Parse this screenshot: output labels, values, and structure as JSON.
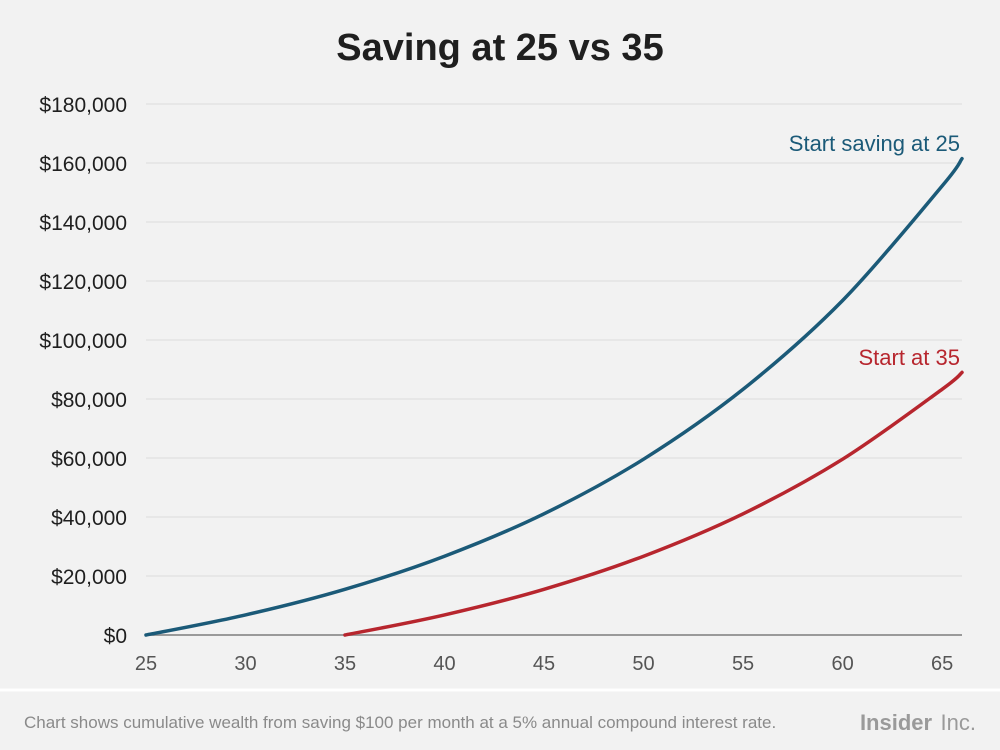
{
  "chart_data": {
    "type": "line",
    "title": "Saving at 25 vs 35",
    "xlabel": "",
    "ylabel": "",
    "xlim": [
      25,
      66
    ],
    "ylim": [
      0,
      180000
    ],
    "x_ticks": [
      25,
      30,
      35,
      40,
      45,
      50,
      55,
      60,
      65
    ],
    "x_tick_labels": [
      "25",
      "30",
      "35",
      "40",
      "45",
      "50",
      "55",
      "60",
      "65"
    ],
    "y_ticks": [
      0,
      20000,
      40000,
      60000,
      80000,
      100000,
      120000,
      140000,
      160000,
      180000
    ],
    "y_tick_labels": [
      "$0",
      "$20,000",
      "$40,000",
      "$60,000",
      "$80,000",
      "$100,000",
      "$120,000",
      "$140,000",
      "$160,000",
      "$180,000"
    ],
    "grid": true,
    "legend": "none",
    "series": [
      {
        "name": "Start saving at 25",
        "color": "#1b5a78",
        "x": [
          25,
          30,
          35,
          40,
          45,
          50,
          55,
          60,
          65,
          66
        ],
        "y": [
          0,
          6800,
          15500,
          26700,
          41100,
          59600,
          83300,
          113400,
          152200,
          161500
        ]
      },
      {
        "name": "Start at 35",
        "color": "#b7262e",
        "x": [
          35,
          40,
          45,
          50,
          55,
          60,
          65,
          66
        ],
        "y": [
          0,
          6800,
          15500,
          26700,
          41100,
          59600,
          83300,
          89000
        ]
      }
    ]
  },
  "footnote": "Chart shows cumulative wealth from saving $100 per month at a 5% annual compound interest rate.",
  "brand": {
    "bold": "Insider",
    "light": "Inc."
  }
}
